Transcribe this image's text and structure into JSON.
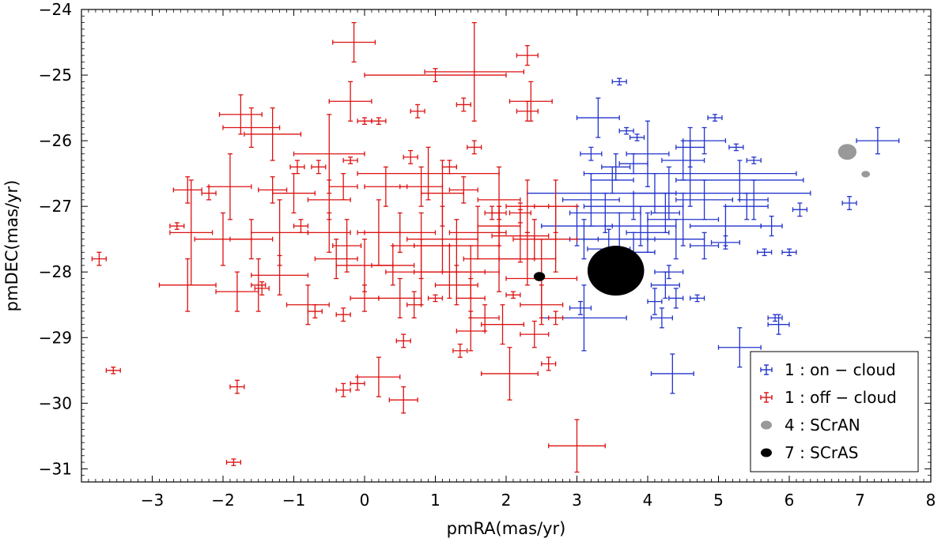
{
  "chart_data": {
    "type": "scatter",
    "title": "",
    "xlabel": "pmRA(mas/yr)",
    "ylabel": "pmDEC(mas/yr)",
    "xlim": [
      -4,
      8
    ],
    "ylim": [
      -31.2,
      -24
    ],
    "x_ticks": [
      -3,
      -2,
      -1,
      0,
      1,
      2,
      3,
      4,
      5,
      6,
      7,
      8
    ],
    "y_ticks": [
      -31,
      -30,
      -29,
      -28,
      -27,
      -26,
      -25,
      -24
    ],
    "x_tick_labels": [
      "−3",
      "−2",
      "−1",
      "0",
      "1",
      "2",
      "3",
      "4",
      "5",
      "6",
      "7",
      "8"
    ],
    "y_tick_labels": [
      "−31",
      "−30",
      "−29",
      "−28",
      "−27",
      "−26",
      "−25",
      "−24"
    ],
    "grid": false,
    "legend_position": "bottom-right",
    "colors": {
      "on_cloud": "#2233cc",
      "off_cloud": "#dd1111",
      "scran": "#999999",
      "scras": "#000000"
    },
    "series": [
      {
        "name": "1 : on − cloud",
        "marker": "errorbar",
        "color": "#2233cc",
        "points": [
          [
            3.6,
            -25.1,
            0.1,
            0.05
          ],
          [
            3.3,
            -25.65,
            0.3,
            0.3
          ],
          [
            3.7,
            -25.85,
            0.1,
            0.05
          ],
          [
            3.85,
            -25.95,
            0.1,
            0.05
          ],
          [
            3.2,
            -26.2,
            0.15,
            0.1
          ],
          [
            3.8,
            -26.35,
            0.2,
            0.15
          ],
          [
            4.5,
            -26.3,
            0.3,
            0.3
          ],
          [
            4.8,
            -26.0,
            0.3,
            0.2
          ],
          [
            4.95,
            -25.65,
            0.1,
            0.05
          ],
          [
            5.25,
            -26.1,
            0.1,
            0.05
          ],
          [
            5.5,
            -26.3,
            0.1,
            0.05
          ],
          [
            4.6,
            -26.5,
            1.5,
            0.5
          ],
          [
            5.3,
            -26.6,
            0.9,
            0.3
          ],
          [
            4.3,
            -26.8,
            2.0,
            0.4
          ],
          [
            3.5,
            -26.6,
            0.3,
            0.2
          ],
          [
            3.2,
            -26.9,
            0.4,
            0.4
          ],
          [
            3.4,
            -27.1,
            0.5,
            0.3
          ],
          [
            3.8,
            -27.0,
            0.7,
            0.2
          ],
          [
            4.1,
            -26.8,
            0.3,
            0.3
          ],
          [
            4.25,
            -27.1,
            0.2,
            0.3
          ],
          [
            4.5,
            -27.2,
            0.5,
            0.4
          ],
          [
            4.8,
            -26.9,
            0.4,
            0.3
          ],
          [
            5.1,
            -27.3,
            0.5,
            0.3
          ],
          [
            5.4,
            -27.0,
            0.3,
            0.2
          ],
          [
            5.5,
            -26.9,
            0.2,
            0.3
          ],
          [
            3.9,
            -27.3,
            0.5,
            0.3
          ],
          [
            3.6,
            -27.5,
            0.5,
            0.4
          ],
          [
            3.1,
            -27.5,
            0.2,
            0.3
          ],
          [
            3.0,
            -27.3,
            0.5,
            0.3
          ],
          [
            4.0,
            -27.4,
            0.3,
            0.3
          ],
          [
            4.4,
            -27.5,
            0.4,
            0.3
          ],
          [
            4.8,
            -27.6,
            0.2,
            0.2
          ],
          [
            3.8,
            -27.7,
            0.3,
            0.3
          ],
          [
            4.3,
            -28.0,
            0.2,
            0.1
          ],
          [
            4.25,
            -28.2,
            0.2,
            0.2
          ],
          [
            4.1,
            -28.45,
            0.1,
            0.2
          ],
          [
            4.2,
            -28.7,
            0.15,
            0.15
          ],
          [
            4.4,
            -28.4,
            0.1,
            0.15
          ],
          [
            4.7,
            -28.4,
            0.1,
            0.05
          ],
          [
            3.05,
            -28.55,
            0.15,
            0.1
          ],
          [
            3.1,
            -28.7,
            0.6,
            0.5
          ],
          [
            5.1,
            -27.55,
            0.2,
            0.1
          ],
          [
            5.65,
            -27.7,
            0.1,
            0.05
          ],
          [
            5.75,
            -27.3,
            0.15,
            0.15
          ],
          [
            5.8,
            -28.7,
            0.1,
            0.05
          ],
          [
            5.85,
            -28.8,
            0.15,
            0.15
          ],
          [
            6.0,
            -27.7,
            0.1,
            0.05
          ],
          [
            6.15,
            -27.05,
            0.1,
            0.1
          ],
          [
            6.85,
            -26.95,
            0.1,
            0.1
          ],
          [
            7.25,
            -26.0,
            0.3,
            0.2
          ],
          [
            5.3,
            -29.15,
            0.3,
            0.3
          ],
          [
            4.35,
            -29.55,
            0.3,
            0.3
          ],
          [
            3.45,
            -27.65,
            0.3,
            0.3
          ],
          [
            4.6,
            -26.1,
            0.2,
            0.3
          ],
          [
            4.0,
            -26.2,
            0.3,
            0.5
          ],
          [
            3.55,
            -26.4,
            0.2,
            0.2
          ]
        ]
      },
      {
        "name": "1 : off − cloud",
        "marker": "errorbar",
        "color": "#dd1111",
        "points": [
          [
            -0.15,
            -24.5,
            0.3,
            0.3
          ],
          [
            2.3,
            -24.7,
            0.15,
            0.15
          ],
          [
            1.55,
            -24.95,
            0.7,
            0.75
          ],
          [
            1.0,
            -25.0,
            1.0,
            0.1
          ],
          [
            2.35,
            -25.4,
            0.3,
            0.3
          ],
          [
            -0.2,
            -25.4,
            0.3,
            0.3
          ],
          [
            0.75,
            -25.55,
            0.1,
            0.1
          ],
          [
            1.4,
            -25.45,
            0.1,
            0.1
          ],
          [
            2.3,
            -25.55,
            0.15,
            0.15
          ],
          [
            -1.6,
            -25.8,
            0.4,
            0.3
          ],
          [
            -1.3,
            -25.9,
            0.4,
            0.4
          ],
          [
            -1.75,
            -25.6,
            0.3,
            0.3
          ],
          [
            0.0,
            -25.7,
            0.1,
            0.05
          ],
          [
            0.2,
            -25.7,
            0.1,
            0.05
          ],
          [
            -0.5,
            -26.2,
            0.5,
            0.6
          ],
          [
            -0.2,
            -26.3,
            0.1,
            0.05
          ],
          [
            1.55,
            -26.1,
            0.1,
            0.1
          ],
          [
            0.65,
            -26.25,
            0.1,
            0.1
          ],
          [
            -0.95,
            -26.4,
            0.1,
            0.1
          ],
          [
            -0.65,
            -26.4,
            0.1,
            0.1
          ],
          [
            1.2,
            -26.4,
            0.1,
            0.1
          ],
          [
            0.9,
            -26.5,
            1.0,
            0.4
          ],
          [
            -2.5,
            -26.75,
            0.2,
            0.2
          ],
          [
            -2.2,
            -26.8,
            0.1,
            0.1
          ],
          [
            -1.9,
            -26.7,
            0.3,
            0.5
          ],
          [
            -1.3,
            -26.75,
            0.2,
            0.2
          ],
          [
            -1.0,
            -26.8,
            0.3,
            0.3
          ],
          [
            -0.5,
            -26.9,
            0.3,
            0.3
          ],
          [
            -0.3,
            -26.7,
            0.2,
            0.2
          ],
          [
            0.3,
            -26.7,
            0.3,
            0.3
          ],
          [
            0.8,
            -26.7,
            0.3,
            0.3
          ],
          [
            1.1,
            -26.8,
            0.3,
            0.5
          ],
          [
            1.4,
            -26.75,
            0.2,
            0.2
          ],
          [
            1.9,
            -26.9,
            0.3,
            0.5
          ],
          [
            2.3,
            -27.0,
            0.3,
            0.4
          ],
          [
            2.7,
            -27.0,
            0.3,
            0.4
          ],
          [
            -2.45,
            -27.4,
            0.3,
            0.8
          ],
          [
            -2.65,
            -27.3,
            0.1,
            0.05
          ],
          [
            -2.0,
            -27.5,
            0.4,
            0.4
          ],
          [
            -1.6,
            -27.5,
            0.3,
            0.3
          ],
          [
            -1.2,
            -27.4,
            0.4,
            0.5
          ],
          [
            -0.9,
            -27.3,
            0.1,
            0.1
          ],
          [
            -0.5,
            -27.4,
            0.3,
            0.3
          ],
          [
            -0.25,
            -27.6,
            0.2,
            0.4
          ],
          [
            0.2,
            -27.4,
            0.3,
            0.5
          ],
          [
            0.5,
            -27.4,
            0.5,
            0.3
          ],
          [
            0.8,
            -27.6,
            0.4,
            0.5
          ],
          [
            1.1,
            -27.5,
            0.5,
            0.5
          ],
          [
            1.3,
            -27.6,
            0.6,
            0.4
          ],
          [
            1.6,
            -27.4,
            0.4,
            0.4
          ],
          [
            1.9,
            -27.3,
            0.3,
            0.3
          ],
          [
            2.2,
            -27.45,
            0.4,
            0.4
          ],
          [
            2.4,
            -27.5,
            0.3,
            0.3
          ],
          [
            -0.4,
            -27.8,
            0.3,
            0.3
          ],
          [
            0.0,
            -27.9,
            0.4,
            0.4
          ],
          [
            0.4,
            -27.9,
            0.3,
            0.3
          ],
          [
            0.8,
            -28.0,
            0.5,
            0.5
          ],
          [
            1.2,
            -28.0,
            0.5,
            0.4
          ],
          [
            1.5,
            -28.0,
            0.4,
            0.4
          ],
          [
            1.9,
            -27.8,
            0.5,
            0.5
          ],
          [
            2.3,
            -27.8,
            0.4,
            0.4
          ],
          [
            2.7,
            -27.5,
            0.3,
            0.5
          ],
          [
            -2.5,
            -28.2,
            0.4,
            0.4
          ],
          [
            -1.8,
            -28.3,
            0.3,
            0.3
          ],
          [
            -1.5,
            -28.2,
            0.1,
            0.4
          ],
          [
            -1.45,
            -28.25,
            0.1,
            0.1
          ],
          [
            -1.2,
            -28.05,
            0.4,
            0.3
          ],
          [
            -0.8,
            -28.5,
            0.3,
            0.3
          ],
          [
            -0.7,
            -28.6,
            0.1,
            0.1
          ],
          [
            -0.3,
            -28.65,
            0.1,
            0.1
          ],
          [
            0.0,
            -28.4,
            0.2,
            0.2
          ],
          [
            0.5,
            -28.4,
            0.3,
            0.3
          ],
          [
            0.7,
            -28.5,
            0.1,
            0.2
          ],
          [
            1.0,
            -28.4,
            0.1,
            0.05
          ],
          [
            1.3,
            -28.2,
            0.3,
            0.3
          ],
          [
            1.5,
            -28.4,
            0.2,
            0.3
          ],
          [
            1.7,
            -28.7,
            0.2,
            0.2
          ],
          [
            2.1,
            -28.35,
            0.1,
            0.05
          ],
          [
            2.5,
            -28.5,
            0.3,
            0.3
          ],
          [
            2.7,
            -28.7,
            0.1,
            0.1
          ],
          [
            1.95,
            -28.8,
            0.3,
            0.3
          ],
          [
            1.5,
            -28.9,
            0.2,
            0.3
          ],
          [
            2.4,
            -28.95,
            0.2,
            0.2
          ],
          [
            1.35,
            -29.2,
            0.1,
            0.1
          ],
          [
            0.55,
            -29.05,
            0.1,
            0.1
          ],
          [
            -1.8,
            -29.75,
            0.1,
            0.1
          ],
          [
            -0.3,
            -29.8,
            0.1,
            0.1
          ],
          [
            -0.1,
            -29.7,
            0.1,
            0.1
          ],
          [
            0.2,
            -29.6,
            0.3,
            0.3
          ],
          [
            0.55,
            -29.95,
            0.2,
            0.2
          ],
          [
            2.05,
            -29.55,
            0.4,
            0.4
          ],
          [
            2.6,
            -29.4,
            0.1,
            0.1
          ],
          [
            -3.75,
            -27.8,
            0.1,
            0.1
          ],
          [
            -3.55,
            -29.5,
            0.1,
            0.05
          ],
          [
            -1.85,
            -30.9,
            0.1,
            0.05
          ],
          [
            3.0,
            -30.65,
            0.4,
            0.4
          ],
          [
            2.5,
            -28.1,
            0.5,
            0.6
          ],
          [
            1.9,
            -27.1,
            0.1,
            0.1
          ],
          [
            2.2,
            -27.1,
            0.15,
            0.15
          ],
          [
            1.8,
            -27.1,
            0.1,
            0.1
          ]
        ]
      },
      {
        "name": "4 : SCrAN",
        "marker": "ellipse",
        "color": "#999999",
        "points": [
          [
            6.82,
            -26.17,
            0.13,
            0.12
          ],
          [
            7.08,
            -26.51,
            0.06,
            0.05
          ]
        ]
      },
      {
        "name": "7 : SCrAS",
        "marker": "ellipse",
        "color": "#000000",
        "points": [
          [
            3.55,
            -27.98,
            0.4,
            0.38
          ],
          [
            2.47,
            -28.07,
            0.08,
            0.07
          ]
        ]
      }
    ]
  }
}
